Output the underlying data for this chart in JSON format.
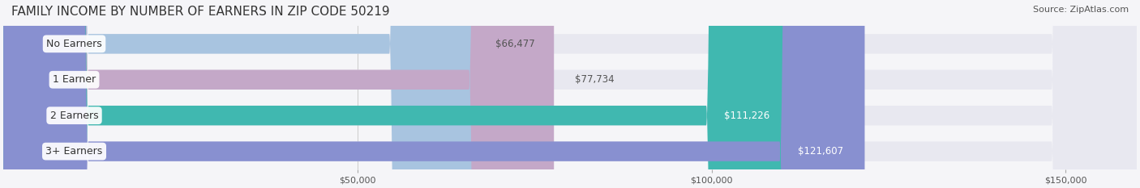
{
  "title": "FAMILY INCOME BY NUMBER OF EARNERS IN ZIP CODE 50219",
  "source": "Source: ZipAtlas.com",
  "categories": [
    "No Earners",
    "1 Earner",
    "2 Earners",
    "3+ Earners"
  ],
  "values": [
    66477,
    77734,
    111226,
    121607
  ],
  "labels": [
    "$66,477",
    "$77,734",
    "$111,226",
    "$121,607"
  ],
  "bar_colors": [
    "#a8c4e0",
    "#c4a8c8",
    "#40b8b0",
    "#8890d0"
  ],
  "bar_bg_color": "#e8e8f0",
  "label_colors": [
    "#555555",
    "#555555",
    "#ffffff",
    "#ffffff"
  ],
  "xlim": [
    0,
    160000
  ],
  "xticks": [
    50000,
    100000,
    150000
  ],
  "xticklabels": [
    "$50,000",
    "$100,000",
    "$150,000"
  ],
  "title_fontsize": 11,
  "source_fontsize": 8,
  "bar_height": 0.55,
  "figsize": [
    14.06,
    2.33
  ],
  "dpi": 100,
  "bg_color": "#f5f5f8",
  "title_color": "#333333",
  "source_color": "#555555",
  "category_fontsize": 9,
  "value_fontsize": 8.5
}
